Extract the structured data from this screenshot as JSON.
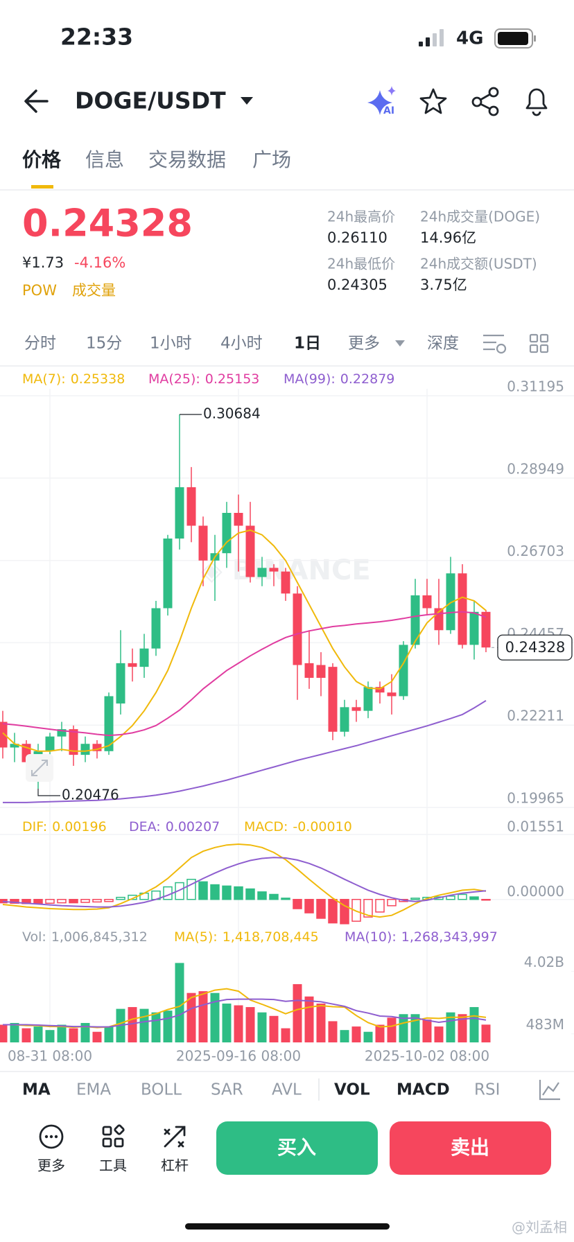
{
  "status_bar": {
    "time": "22:33",
    "network": "4G"
  },
  "header": {
    "pair": "DOGE/USDT"
  },
  "tabs": [
    "价格",
    "信息",
    "交易数据",
    "广场"
  ],
  "ticker": {
    "last": "0.24328",
    "cny": "¥1.73",
    "change": "-4.16%",
    "tags": [
      "POW",
      "成交量"
    ],
    "stats": [
      {
        "label": "24h最高价",
        "value": "0.26110"
      },
      {
        "label": "24h成交量(DOGE)",
        "value": "14.96亿"
      },
      {
        "label": "24h最低价",
        "value": "0.24305"
      },
      {
        "label": "24h成交额(USDT)",
        "value": "3.75亿"
      }
    ]
  },
  "intervals": [
    "分时",
    "15分",
    "1小时",
    "4小时",
    "1日",
    "更多",
    "深度"
  ],
  "indicators": [
    "MA",
    "EMA",
    "BOLL",
    "SAR",
    "AVL",
    "VOL",
    "MACD",
    "RSI"
  ],
  "actions": [
    "更多",
    "工具",
    "杠杆"
  ],
  "buy": "买入",
  "sell": "卖出",
  "watermark": "@刘孟相",
  "chart_data": [
    {
      "type": "candlestick",
      "categories": [
        null,
        null,
        null,
        null,
        "08-31 08:00",
        null,
        null,
        null,
        null,
        null,
        null,
        null,
        null,
        null,
        null,
        null,
        null,
        null,
        null,
        null,
        "2025-09-16 08:00",
        null,
        null,
        null,
        null,
        null,
        null,
        null,
        null,
        null,
        null,
        null,
        null,
        null,
        null,
        null,
        "2025-10-02 08:00",
        null,
        null,
        null,
        null,
        null
      ],
      "open": [
        0.223,
        0.216,
        0.217,
        0.212,
        0.215,
        0.219,
        0.221,
        0.214,
        0.217,
        0.215,
        0.228,
        0.239,
        0.238,
        0.243,
        0.254,
        0.273,
        0.287,
        0.2765,
        0.267,
        0.269,
        0.28,
        0.2765,
        0.2625,
        0.265,
        0.264,
        0.258,
        0.239,
        0.2385,
        0.238,
        0.2203,
        0.227,
        0.226,
        0.2325,
        0.231,
        0.23,
        0.244,
        0.2575,
        0.254,
        0.248,
        0.2635,
        0.244,
        0.253
      ],
      "high": [
        0.226,
        0.22,
        0.218,
        0.217,
        0.22,
        0.223,
        0.222,
        0.219,
        0.218,
        0.231,
        0.248,
        0.243,
        0.247,
        0.256,
        0.274,
        0.30684,
        0.2925,
        0.279,
        0.274,
        0.283,
        0.285,
        0.283,
        0.268,
        0.266,
        0.265,
        0.26,
        0.248,
        0.242,
        0.239,
        0.229,
        0.229,
        0.234,
        0.234,
        0.236,
        0.245,
        0.262,
        0.262,
        0.262,
        0.268,
        0.266,
        0.256,
        0.2535
      ],
      "low": [
        0.213,
        0.212,
        0.21,
        0.20476,
        0.211,
        0.215,
        0.211,
        0.212,
        0.213,
        0.214,
        0.225,
        0.234,
        0.235,
        0.241,
        0.252,
        0.27,
        0.272,
        0.26,
        0.256,
        0.265,
        0.264,
        0.261,
        0.26,
        0.26,
        0.256,
        0.229,
        0.232,
        0.23,
        0.218,
        0.219,
        0.223,
        0.224,
        0.228,
        0.225,
        0.229,
        0.243,
        0.252,
        0.244,
        0.247,
        0.243,
        0.24,
        0.242
      ],
      "close": [
        0.216,
        0.217,
        0.212,
        0.215,
        0.219,
        0.221,
        0.214,
        0.217,
        0.215,
        0.23,
        0.239,
        0.238,
        0.243,
        0.254,
        0.273,
        0.287,
        0.2765,
        0.267,
        0.269,
        0.28,
        0.2765,
        0.2625,
        0.265,
        0.264,
        0.258,
        0.2385,
        0.235,
        0.235,
        0.2203,
        0.227,
        0.226,
        0.2325,
        0.231,
        0.23,
        0.244,
        0.2575,
        0.254,
        0.248,
        0.2635,
        0.244,
        0.253,
        0.24328
      ],
      "colors": {
        "up": "#2ebd85",
        "down": "#f6465d"
      },
      "series": [
        {
          "name": "MA(7):",
          "color": "#f0b90b",
          "values": [
            0.22,
            0.217,
            0.216,
            0.215,
            0.215,
            0.2155,
            0.215,
            0.215,
            0.2155,
            0.2165,
            0.219,
            0.222,
            0.226,
            0.231,
            0.237,
            0.245,
            0.254,
            0.262,
            0.268,
            0.272,
            0.2745,
            0.2753,
            0.274,
            0.271,
            0.267,
            0.261,
            0.255,
            0.249,
            0.243,
            0.238,
            0.234,
            0.2322,
            0.232,
            0.234,
            0.239,
            0.245,
            0.25,
            0.253,
            0.2555,
            0.257,
            0.256,
            0.25338
          ]
        },
        {
          "name": "MA(25):",
          "color": "#e03ca0",
          "values": [
            0.2225,
            0.2222,
            0.2218,
            0.2214,
            0.221,
            0.2206,
            0.2203,
            0.22,
            0.2196,
            0.2193,
            0.2195,
            0.22,
            0.2208,
            0.222,
            0.224,
            0.2262,
            0.229,
            0.232,
            0.2345,
            0.237,
            0.239,
            0.241,
            0.2428,
            0.2445,
            0.246,
            0.247,
            0.2478,
            0.2484,
            0.249,
            0.2493,
            0.2497,
            0.25,
            0.2503,
            0.2507,
            0.2512,
            0.2518,
            0.2522,
            0.2525,
            0.2528,
            0.253,
            0.2527,
            0.25153
          ]
        },
        {
          "name": "MA(99):",
          "color": "#8e5ecf",
          "values": [
            0.201,
            0.201,
            0.201,
            0.2011,
            0.2012,
            0.2013,
            0.2014,
            0.2015,
            0.2016,
            0.2018,
            0.202,
            0.2023,
            0.2026,
            0.203,
            0.2035,
            0.2041,
            0.2048,
            0.2055,
            0.2063,
            0.2071,
            0.208,
            0.2089,
            0.2098,
            0.2107,
            0.2116,
            0.2125,
            0.2133,
            0.2141,
            0.2149,
            0.2157,
            0.2165,
            0.2174,
            0.2183,
            0.2192,
            0.2201,
            0.221,
            0.2219,
            0.2229,
            0.2239,
            0.225,
            0.2268,
            0.22879
          ]
        }
      ],
      "ylim": [
        0.19965,
        0.31195
      ],
      "yticks": [
        0.19965,
        0.22211,
        0.24457,
        0.26703,
        0.28949,
        0.31195
      ],
      "grid": true
    },
    {
      "type": "macd",
      "series": [
        {
          "name": "DIF:",
          "color": "#f0b90b",
          "kind": "line",
          "values": [
            -0.0012,
            -0.0015,
            -0.0018,
            -0.002,
            -0.0022,
            -0.0023,
            -0.0024,
            -0.0024,
            -0.0023,
            -0.002,
            -0.001,
            0.0002,
            0.0015,
            0.003,
            0.005,
            0.0075,
            0.01,
            0.0115,
            0.0124,
            0.013,
            0.0132,
            0.013,
            0.0124,
            0.0112,
            0.0095,
            0.0072,
            0.0048,
            0.0025,
            0.0003,
            -0.0015,
            -0.0028,
            -0.0038,
            -0.0042,
            -0.0038,
            -0.0025,
            -0.001,
            0.0002,
            0.001,
            0.0016,
            0.0022,
            0.0024,
            0.00196
          ]
        },
        {
          "name": "DEA:",
          "color": "#8e5ecf",
          "kind": "line",
          "values": [
            -0.0005,
            -0.0007,
            -0.0009,
            -0.0011,
            -0.0013,
            -0.0015,
            -0.0016,
            -0.0017,
            -0.0018,
            -0.0018,
            -0.0016,
            -0.0012,
            -0.0007,
            0.0,
            0.001,
            0.0022,
            0.0036,
            0.005,
            0.0063,
            0.0075,
            0.0085,
            0.0093,
            0.0098,
            0.01,
            0.0099,
            0.0094,
            0.0086,
            0.0075,
            0.0062,
            0.0048,
            0.0035,
            0.0022,
            0.0012,
            0.0004,
            -0.0002,
            -0.0005,
            -0.0002,
            0.0004,
            0.001,
            0.0015,
            0.0018,
            0.00207
          ]
        },
        {
          "name": "MACD:",
          "color": "#f0b90b",
          "kind": "bar",
          "values": [
            -0.0008,
            -0.0009,
            -0.001,
            -0.001,
            -0.0009,
            -0.0008,
            -0.0008,
            -0.0007,
            -0.0006,
            -0.0005,
            0.0005,
            0.001,
            0.0015,
            0.002,
            0.003,
            0.004,
            0.0048,
            0.0042,
            0.0035,
            0.0032,
            0.003,
            0.0025,
            0.0018,
            0.0012,
            0.0003,
            -0.0022,
            -0.0032,
            -0.0045,
            -0.0056,
            -0.0058,
            -0.0052,
            -0.0042,
            -0.003,
            -0.0015,
            -0.0005,
            0.0003,
            0.0005,
            0.0006,
            0.0008,
            0.0012,
            0.0006,
            -0.0001
          ],
          "legend_value": {
            "value": -0.0001,
            "label": "-0.00010"
          }
        }
      ],
      "ylim": [
        -0.006,
        0.0213
      ],
      "yticks": [
        {
          "value": 0,
          "label": "0.00000"
        },
        0.01551
      ]
    },
    {
      "type": "volume",
      "series": [
        {
          "name": "Vol:",
          "color": "#929aa5",
          "kind": "bar",
          "values": [
            1000000000.0,
            1100000000.0,
            800000000.0,
            900000000.0,
            700000000.0,
            1000000000.0,
            800000000.0,
            1100000000.0,
            600000000.0,
            900000000.0,
            1900000000.0,
            2000000000.0,
            1900000000.0,
            1700000000.0,
            1800000000.0,
            4500000000.0,
            2800000000.0,
            2900000000.0,
            2800000000.0,
            2200000000.0,
            2100000000.0,
            2000000000.0,
            1700000000.0,
            1500000000.0,
            800000000.0,
            3300000000.0,
            2600000000.0,
            2200000000.0,
            1200000000.0,
            700000000.0,
            900000000.0,
            600000000.0,
            1000000000.0,
            1400000000.0,
            1600000000.0,
            1600000000.0,
            1300000000.0,
            900000000.0,
            1700000000.0,
            1600000000.0,
            2000000000.0,
            1006845312
          ],
          "legend_value": {
            "value": 1006845312,
            "label": "1,006,845,312"
          }
        },
        {
          "name": "MA(5):",
          "color": "#f0b90b",
          "kind": "line",
          "values": [
            1000000000.0,
            1000000000.0,
            950000000.0,
            950000000.0,
            900000000.0,
            900000000.0,
            860000000.0,
            900000000.0,
            840000000.0,
            880000000.0,
            1080000000.0,
            1320000000.0,
            1460000000.0,
            1620000000.0,
            1860000000.0,
            2040000000.0,
            2540000000.0,
            2740000000.0,
            2960000000.0,
            3040000000.0,
            2900000000.0,
            2400000000.0,
            2160000000.0,
            1900000000.0,
            1620000000.0,
            1860000000.0,
            2000000000.0,
            2080000000.0,
            2020000000.0,
            2000000000.0,
            1520000000.0,
            1120000000.0,
            880000000.0,
            920000000.0,
            1100000000.0,
            1240000000.0,
            1380000000.0,
            1360000000.0,
            1420000000.0,
            1420000000.0,
            1500000000.0,
            1418708445
          ],
          "legend_value": {
            "value": 1418708445,
            "label": "1,418,708,445"
          }
        },
        {
          "name": "MA(10):",
          "color": "#8e5ecf",
          "kind": "line",
          "values": [
            1000000000.0,
            1000000000.0,
            1000000000.0,
            980000000.0,
            950000000.0,
            930000000.0,
            900000000.0,
            900000000.0,
            880000000.0,
            880000000.0,
            970000000.0,
            1060000000.0,
            1170000000.0,
            1250000000.0,
            1360000000.0,
            1550000000.0,
            1920000000.0,
            2120000000.0,
            2300000000.0,
            2430000000.0,
            2450000000.0,
            2450000000.0,
            2450000000.0,
            2430000000.0,
            2330000000.0,
            2380000000.0,
            2350000000.0,
            2300000000.0,
            2170000000.0,
            2040000000.0,
            1800000000.0,
            1660000000.0,
            1490000000.0,
            1460000000.0,
            1360000000.0,
            1390000000.0,
            1250000000.0,
            1140000000.0,
            1230000000.0,
            1320000000.0,
            1370000000.0,
            1268343997
          ],
          "legend_value": {
            "value": 1268343997,
            "label": "1,268,343,997"
          }
        }
      ],
      "ylim": [
        0,
        5300000000.0
      ],
      "yticks": [
        {
          "value": 483000000,
          "label": "483M"
        },
        {
          "value": 4020000000,
          "label": "4.02B"
        }
      ]
    }
  ]
}
